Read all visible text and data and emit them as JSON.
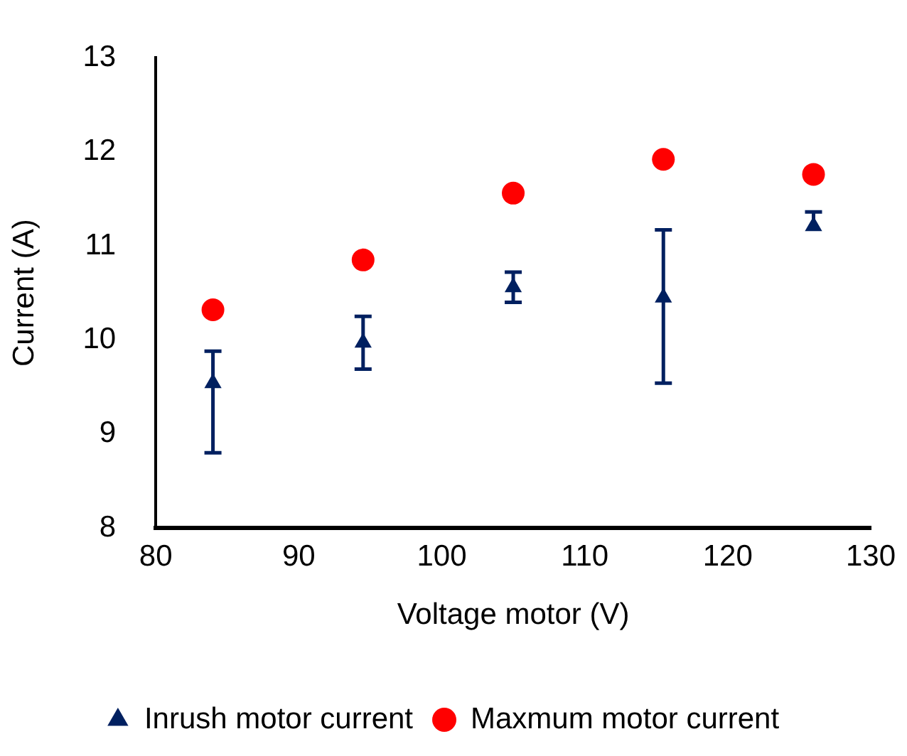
{
  "chart_data": {
    "type": "scatter",
    "xlabel": "Voltage motor (V)",
    "ylabel": "Current (A)",
    "xlim": [
      80,
      130
    ],
    "xticks": [
      80,
      90,
      100,
      110,
      120,
      130
    ],
    "ylim": [
      8,
      13
    ],
    "yticks": [
      8,
      9,
      10,
      11,
      12,
      13
    ],
    "grid": false,
    "legend": "bottom",
    "x": [
      84,
      94.5,
      105,
      115.5,
      126
    ],
    "series": [
      {
        "name": "Inrush motor current",
        "color": "#002060",
        "marker": "triangle",
        "values": [
          9.54,
          9.97,
          10.56,
          10.45,
          11.21
        ],
        "errors": [
          [
            8.8,
            9.88
          ],
          0.28,
          0.16,
          [
            9.54,
            11.17
          ],
          [
            11.21,
            11.36
          ]
        ]
      },
      {
        "name": "Maxmum motor current",
        "color": "#ff0000",
        "marker": "circle",
        "values": [
          10.32,
          10.85,
          11.56,
          11.92,
          11.76
        ]
      }
    ]
  }
}
